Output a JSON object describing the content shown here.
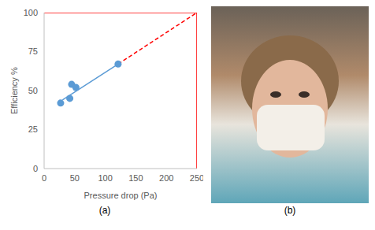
{
  "chart_data": {
    "type": "scatter",
    "caption": "(a)",
    "x_label": "Pressure drop (Pa)",
    "y_label": "Efficiency %",
    "xlim": [
      0,
      250
    ],
    "xticks": [
      0,
      50,
      100,
      150,
      200,
      250
    ],
    "ylim": [
      0,
      100
    ],
    "yticks": [
      0,
      25,
      50,
      75,
      100
    ],
    "grid": false,
    "series": [
      {
        "type": "scatter",
        "color": "#5b9bd5",
        "marker": "circle",
        "x": [
          27,
          42,
          45,
          52,
          121
        ],
        "values": [
          42,
          45,
          54,
          52,
          67
        ]
      },
      {
        "type": "line",
        "color": "#5b9bd5",
        "line_style": "solid",
        "x": [
          30,
          121
        ],
        "values": [
          44,
          67
        ]
      },
      {
        "type": "line",
        "color": "#ff0000",
        "line_style": "dashed",
        "x": [
          121,
          250
        ],
        "values": [
          67,
          100
        ]
      },
      {
        "type": "line",
        "color": "#ff0000",
        "line_style": "solid",
        "x": [
          0,
          250
        ],
        "values": [
          100,
          100
        ]
      },
      {
        "type": "line",
        "color": "#ff0000",
        "line_style": "solid",
        "x": [
          250,
          250
        ],
        "values": [
          0,
          100
        ]
      }
    ]
  },
  "image": {
    "caption": "(b)"
  }
}
